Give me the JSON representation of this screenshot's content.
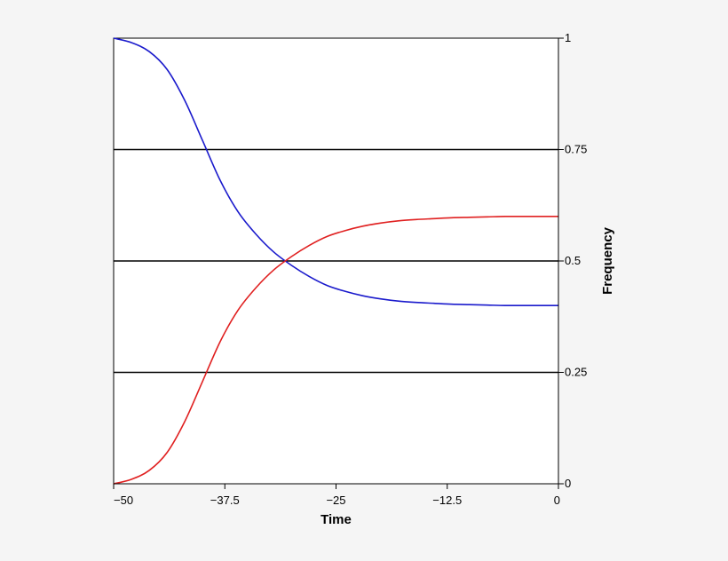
{
  "chart_data": {
    "type": "line",
    "xlabel": "Time",
    "ylabel": "Frequency",
    "xlim": [
      -50,
      0
    ],
    "ylim": [
      0,
      1
    ],
    "x_ticks": [
      {
        "value": -50,
        "label": "−50"
      },
      {
        "value": -37.5,
        "label": "−37.5"
      },
      {
        "value": -25,
        "label": "−25"
      },
      {
        "value": -12.5,
        "label": "−12.5"
      },
      {
        "value": 0,
        "label": "0"
      }
    ],
    "y_ticks": [
      {
        "value": 0,
        "label": "0"
      },
      {
        "value": 0.25,
        "label": "0.25"
      },
      {
        "value": 0.5,
        "label": "0.5"
      },
      {
        "value": 0.75,
        "label": "0.75"
      },
      {
        "value": 1,
        "label": "1"
      }
    ],
    "y_axis_side": "right",
    "grid": "horizontal lines at 0.25, 0.5, 0.75",
    "series": [
      {
        "color": "#1a1acc",
        "x": [
          -50,
          -48,
          -46,
          -44,
          -42,
          -40,
          -38,
          -36,
          -34,
          -32,
          -30,
          -28,
          -26,
          -24,
          -22,
          -20,
          -18,
          -16,
          -14,
          -12,
          -10,
          -8,
          -6,
          -4,
          -2,
          0
        ],
        "y": [
          1.0,
          0.99,
          0.97,
          0.93,
          0.86,
          0.77,
          0.68,
          0.61,
          0.56,
          0.52,
          0.49,
          0.465,
          0.445,
          0.432,
          0.422,
          0.415,
          0.41,
          0.407,
          0.405,
          0.403,
          0.402,
          0.401,
          0.4,
          0.4,
          0.4,
          0.4
        ]
      },
      {
        "color": "#e02020",
        "x": [
          -50,
          -48,
          -46,
          -44,
          -42,
          -40,
          -38,
          -36,
          -34,
          -32,
          -30,
          -28,
          -26,
          -24,
          -22,
          -20,
          -18,
          -16,
          -14,
          -12,
          -10,
          -8,
          -6,
          -4,
          -2,
          0
        ],
        "y": [
          0.0,
          0.01,
          0.03,
          0.07,
          0.14,
          0.23,
          0.32,
          0.39,
          0.44,
          0.48,
          0.51,
          0.535,
          0.555,
          0.568,
          0.578,
          0.585,
          0.59,
          0.593,
          0.595,
          0.597,
          0.598,
          0.599,
          0.6,
          0.6,
          0.6,
          0.6
        ]
      }
    ],
    "colors": {
      "background": "#f5f5f5",
      "plot_background": "#ffffff",
      "grid": "#000000",
      "axis": "#000000"
    }
  }
}
